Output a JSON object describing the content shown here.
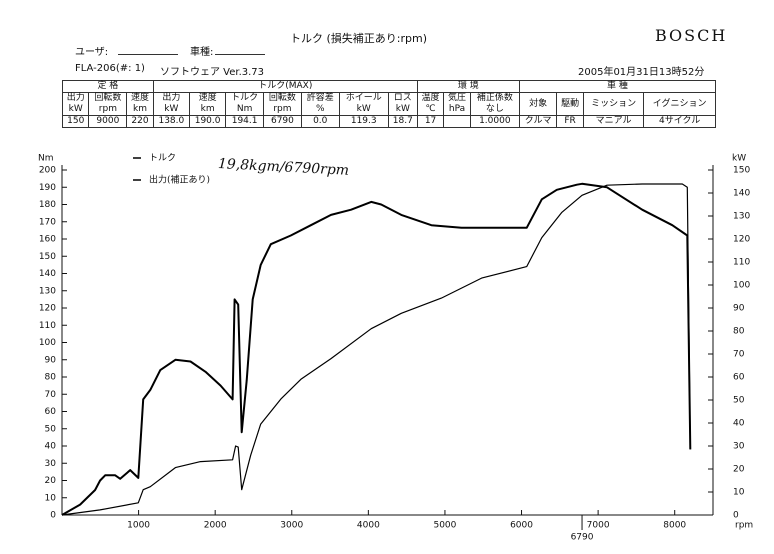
{
  "header": {
    "title": "トルク (損失補正あり:rpm)",
    "brand": "BOSCH",
    "user_label": "ユーザ:",
    "car_label": "車種:",
    "device": "FLA-206(#: 1)",
    "software": "ソフトウェア Ver.3.73",
    "datetime": "2005年01月31日13時52分"
  },
  "table": {
    "groups": [
      {
        "label": "定 格",
        "columns": [
          {
            "name": "出力",
            "unit": "kW"
          },
          {
            "name": "回転数",
            "unit": "rpm"
          },
          {
            "name": "速度",
            "unit": "km"
          }
        ],
        "values": [
          "150",
          "9000",
          "220"
        ]
      },
      {
        "label": "トルク(MAX)",
        "columns": [
          {
            "name": "出力",
            "unit": "kW"
          },
          {
            "name": "速度",
            "unit": "km"
          },
          {
            "name": "トルク",
            "unit": "Nm"
          },
          {
            "name": "回転数",
            "unit": "rpm"
          },
          {
            "name": "許容差",
            "unit": "%"
          },
          {
            "name": "ホイール",
            "unit": "kW"
          },
          {
            "name": "ロス",
            "unit": "kW"
          }
        ],
        "values": [
          "138.0",
          "190.0",
          "194.1",
          "6790",
          "0.0",
          "119.3",
          "18.7"
        ]
      },
      {
        "label": "環 境",
        "columns": [
          {
            "name": "温度",
            "unit": "℃"
          },
          {
            "name": "気圧",
            "unit": "hPa"
          },
          {
            "name": "補正係数",
            "unit": "なし"
          }
        ],
        "values": [
          "17",
          null,
          "1.0000"
        ]
      },
      {
        "label": "車 種",
        "columns": [
          {
            "name": "対象",
            "unit": null
          },
          {
            "name": "駆動",
            "unit": null
          },
          {
            "name": "ミッション",
            "unit": null
          },
          {
            "name": "イグニション",
            "unit": null
          }
        ],
        "values": [
          "クルマ",
          "FR",
          "マニアル",
          "4サイクル"
        ]
      }
    ]
  },
  "chart_data": {
    "type": "line",
    "y_label": "Nm",
    "y2_label": "kW",
    "x_label": "rpm",
    "annotation": "19,8kgm/6790rpm",
    "x_marker": 6790,
    "xlim": [
      0,
      8500
    ],
    "xticks": [
      1000,
      2000,
      3000,
      4000,
      5000,
      6000,
      7000,
      8000
    ],
    "ylim": [
      0,
      200
    ],
    "yticks": [
      0,
      10,
      20,
      30,
      40,
      50,
      60,
      70,
      80,
      90,
      100,
      110,
      120,
      130,
      140,
      150,
      160,
      170,
      180,
      190,
      200
    ],
    "y2lim": [
      0,
      150
    ],
    "y2ticks": [
      0,
      10,
      20,
      30,
      40,
      50,
      60,
      70,
      80,
      90,
      100,
      110,
      120,
      130,
      140,
      150
    ],
    "grid": false,
    "series": [
      {
        "name": "トルク",
        "color": "#000000",
        "axis": "y",
        "x": [
          0,
          236,
          432,
          498,
          564,
          695,
          760,
          890,
          996,
          1060,
          1153,
          1284,
          1481,
          1678,
          1874,
          2071,
          2228,
          2254,
          2300,
          2346,
          2411,
          2490,
          2595,
          2726,
          2988,
          3250,
          3512,
          3775,
          4037,
          4168,
          4430,
          4823,
          5216,
          5740,
          6068,
          6265,
          6461,
          6723,
          6789,
          7116,
          7575,
          7969,
          8165,
          8204
        ],
        "values": [
          0,
          6,
          14.5,
          20,
          23,
          23,
          21,
          26,
          21.5,
          67,
          72.5,
          84,
          90,
          89,
          83,
          75,
          67,
          125,
          122,
          48,
          78,
          125,
          145,
          157,
          162,
          168,
          174,
          177,
          181.5,
          180,
          174,
          168,
          166.5,
          166.5,
          166.5,
          183,
          188.5,
          191.5,
          192,
          190,
          177,
          168,
          162,
          38
        ]
      },
      {
        "name": "出力(補正あり)",
        "color": "#000000",
        "axis": "y2",
        "x": [
          0,
          498,
          996,
          1060,
          1153,
          1481,
          1809,
          2228,
          2267,
          2300,
          2346,
          2464,
          2595,
          2857,
          3119,
          3512,
          4037,
          4430,
          4954,
          5478,
          6068,
          6265,
          6527,
          6789,
          7116,
          7575,
          8099,
          8165,
          8204
        ],
        "values": [
          0,
          2.2,
          5.3,
          11,
          12.3,
          20.6,
          23.2,
          24,
          30,
          29.5,
          11,
          26,
          39.5,
          50.4,
          59,
          68,
          81,
          87.7,
          94.3,
          103,
          108,
          120.6,
          131.6,
          139,
          143.4,
          143.9,
          143.9,
          142.5,
          28.5
        ]
      }
    ]
  }
}
